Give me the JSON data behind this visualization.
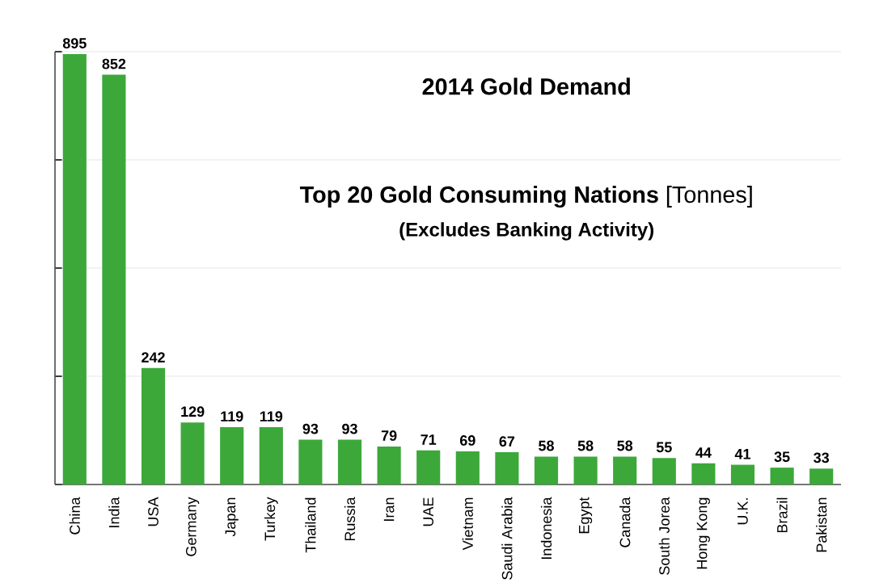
{
  "chart_data": {
    "type": "bar",
    "title": "2014 Gold Demand",
    "subtitle": "**Top 20 Gold Consuming Nations** [Tonnes]",
    "annotations": [
      "(Excludes Banking Activity)"
    ],
    "categories": [
      "China",
      "India",
      "USA",
      "Germany",
      "Japan",
      "Turkey",
      "Thailand",
      "Russia",
      "Iran",
      "UAE",
      "Vietnam",
      "Saudi Arabia",
      "Indonesia",
      "Egypt",
      "Canada",
      "South Jorea",
      "Hong Kong",
      "U.K.",
      "Brazil",
      "Pakistan"
    ],
    "values": [
      895,
      852,
      242,
      129,
      119,
      119,
      93,
      93,
      79,
      71,
      69,
      67,
      58,
      58,
      58,
      55,
      44,
      41,
      35,
      33
    ],
    "color": "#3ca83a",
    "ylim": [
      0,
      900
    ],
    "yticks": [
      {
        "value": 0,
        "label": null
      },
      {
        "value": 225,
        "label": null
      },
      {
        "value": 450,
        "label": null
      },
      {
        "value": 675,
        "label": null
      },
      {
        "value": 900,
        "label": null
      }
    ],
    "grid": "y",
    "tick_labels": "x",
    "data_labels": true
  }
}
